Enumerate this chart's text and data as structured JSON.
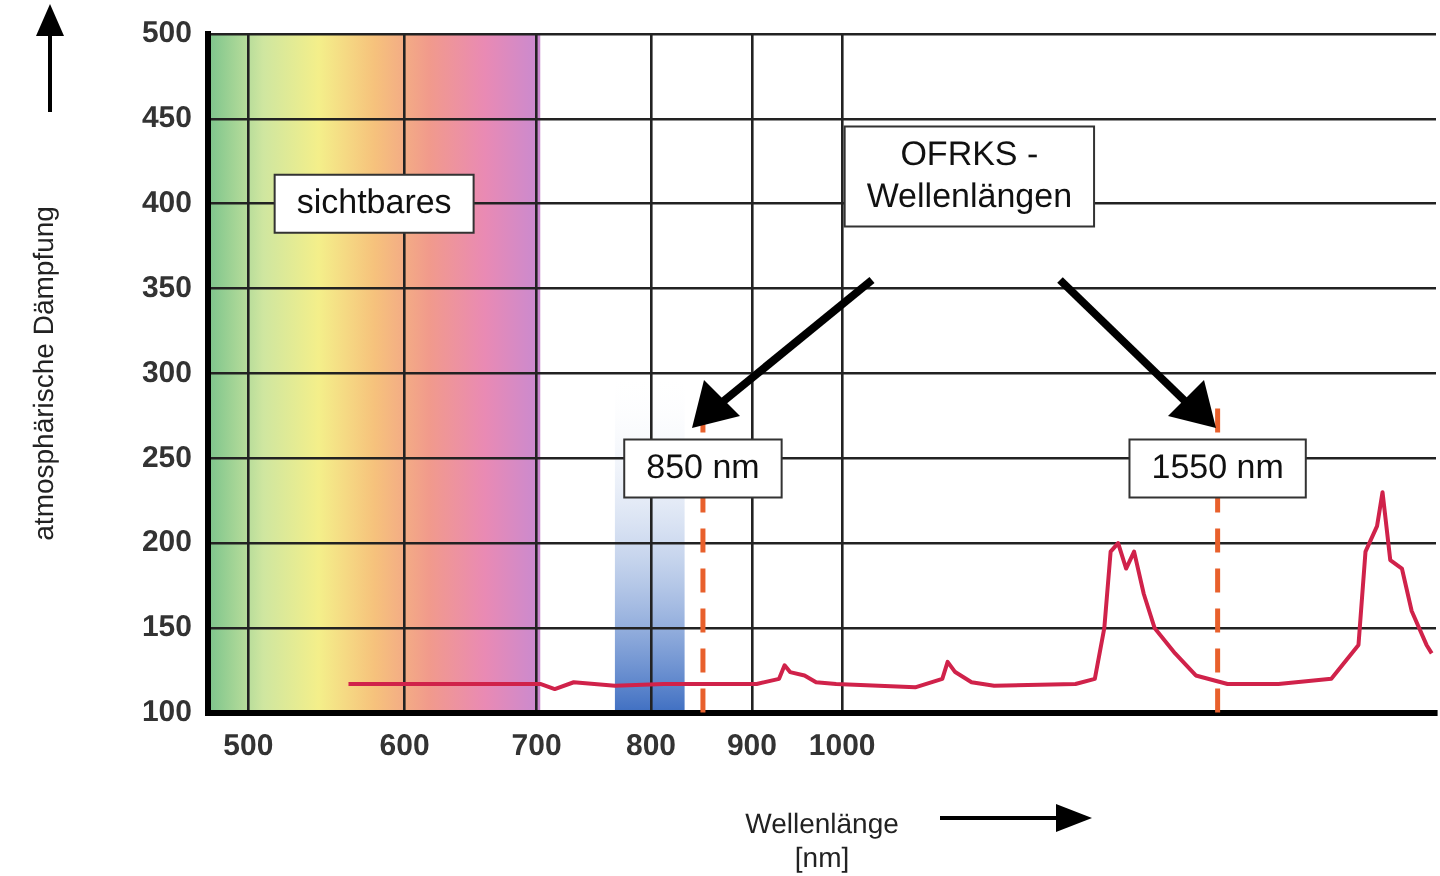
{
  "chart_data": {
    "type": "line",
    "xlabel": "Wellenlänge\n[nm]",
    "ylabel": "atmosphärische Dämpfung",
    "log": "x",
    "xlim": [
      477,
      2000
    ],
    "xticks": [
      500,
      600,
      700,
      800,
      900,
      1000
    ],
    "ylim": [
      100,
      500
    ],
    "yticks": [
      100,
      150,
      200,
      250,
      300,
      350,
      400,
      450,
      500
    ],
    "grid": true,
    "legend": false,
    "marker": "none",
    "line_style": "solid",
    "x": [
      562,
      703,
      715,
      731,
      767,
      812,
      861,
      905,
      929,
      935,
      941,
      957,
      970,
      993,
      1089,
      1124,
      1131,
      1141,
      1163,
      1194,
      1313,
      1343,
      1358,
      1368,
      1380,
      1393,
      1406,
      1422,
      1440,
      1475,
      1511,
      1568,
      1664,
      1770,
      1827,
      1842,
      1867,
      1879,
      1896,
      1922,
      1944,
      1978,
      1990
    ],
    "series": [
      {
        "color": "#d0224a",
        "values": [
          117,
          117,
          114,
          118,
          116,
          117,
          117,
          117,
          120,
          128,
          124,
          122,
          118,
          117,
          115,
          120,
          130,
          124,
          118,
          116,
          117,
          120,
          150,
          195,
          200,
          185,
          195,
          170,
          150,
          135,
          122,
          117,
          117,
          120,
          140,
          195,
          210,
          230,
          190,
          185,
          160,
          140,
          135
        ]
      }
    ],
    "bands": [
      {
        "axis": "x",
        "from": 477,
        "to": 703,
        "label": "sichtbares"
      },
      {
        "axis": "x",
        "from": 767,
        "to": 832,
        "color": "#3f6fc2"
      }
    ],
    "ref_lines": [
      {
        "axis": "x",
        "value": 850,
        "label": "850 nm",
        "color": "#e8602c",
        "line_style": "dashed"
      },
      {
        "axis": "x",
        "value": 1550,
        "label": "1550 nm",
        "color": "#e8602c",
        "line_style": "dashed"
      }
    ],
    "annotations": [
      "OFRKS -\nWellenlängen"
    ]
  }
}
